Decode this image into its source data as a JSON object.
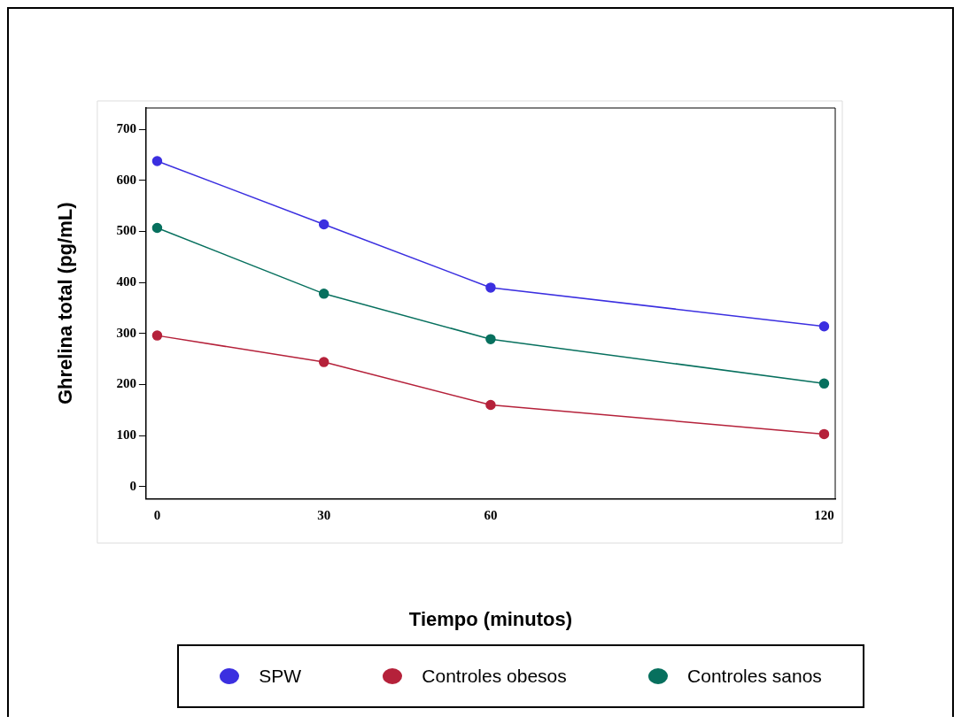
{
  "chart_data": {
    "type": "line",
    "xlabel": "Tiempo (minutos)",
    "ylabel": "Ghrelina total (pg/mL)",
    "x": [
      0,
      30,
      60,
      120
    ],
    "xlim": [
      -2,
      122
    ],
    "xticks": [
      0,
      30,
      60,
      120
    ],
    "ylim": [
      -24,
      742
    ],
    "yticks": [
      0,
      100,
      200,
      300,
      400,
      500,
      600,
      700
    ],
    "series": [
      {
        "name": "SPW",
        "color": "#3b2fe0",
        "values": [
          638,
          514,
          390,
          314
        ]
      },
      {
        "name": "Controles obesos",
        "color": "#b5213a",
        "values": [
          296,
          244,
          160,
          103
        ]
      },
      {
        "name": "Controles sanos",
        "color": "#07705e",
        "values": [
          507,
          378,
          289,
          202
        ]
      }
    ],
    "legend": "bottom",
    "marker": "circle",
    "grid": false
  }
}
